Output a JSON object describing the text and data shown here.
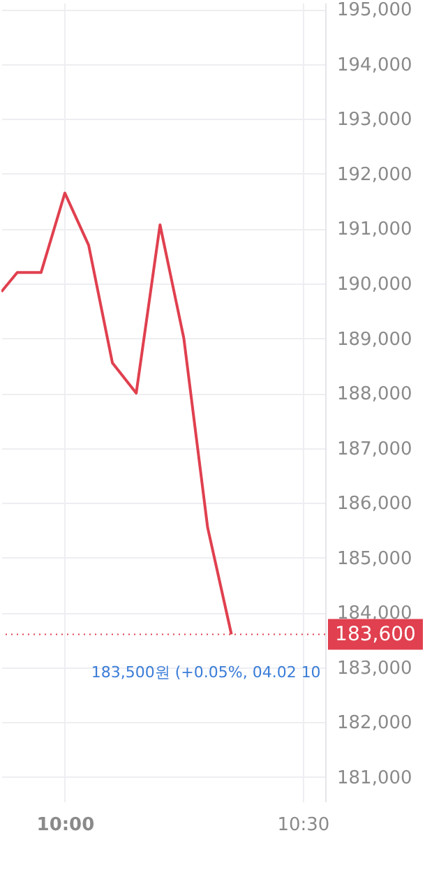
{
  "chart_data": {
    "type": "line",
    "x": [
      9.8667,
      9.9,
      9.95,
      10,
      10.05,
      10.1,
      10.15,
      10.2,
      10.25,
      10.3,
      10.35
    ],
    "series": [
      {
        "color": "#e0404f",
        "values": [
          189850,
          190200,
          190200,
          191650,
          190700,
          188550,
          188000,
          191070,
          189000,
          185550,
          183600
        ]
      }
    ],
    "xlim": [
      9.8667,
      10.547
    ],
    "xticks": [
      {
        "value": 10,
        "label": "10:00"
      },
      {
        "value": 10.5,
        "label": "10:30"
      }
    ],
    "ylim": [
      180550,
      195120
    ],
    "yticks": [
      {
        "value": 181000,
        "label": "181,000"
      },
      {
        "value": 182000,
        "label": "182,000"
      },
      {
        "value": 183000,
        "label": "183,000"
      },
      {
        "value": 184000,
        "label": "184,000"
      },
      {
        "value": 185000,
        "label": "185,000"
      },
      {
        "value": 186000,
        "label": "186,000"
      },
      {
        "value": 187000,
        "label": "187,000"
      },
      {
        "value": 188000,
        "label": "188,000"
      },
      {
        "value": 189000,
        "label": "189,000"
      },
      {
        "value": 190000,
        "label": "190,000"
      },
      {
        "value": 191000,
        "label": "191,000"
      },
      {
        "value": 192000,
        "label": "192,000"
      },
      {
        "value": 193000,
        "label": "193,000"
      },
      {
        "value": 194000,
        "label": "194,000"
      },
      {
        "value": 195000,
        "label": "195,000"
      }
    ],
    "grid": true,
    "marker": "none",
    "line_style": "solid",
    "ref_lines": [
      {
        "axis": "y",
        "value": 183600,
        "label": "183,600",
        "color": "#e0404f",
        "line_style": "dotted"
      }
    ],
    "annotations": [
      {
        "text": "183,500원 (+0.05%, 04.02 10",
        "x": 10.35,
        "y": 183500
      }
    ]
  }
}
